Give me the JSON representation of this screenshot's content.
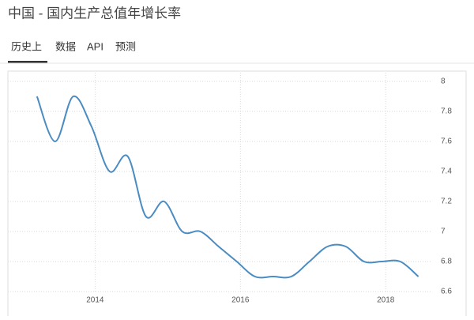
{
  "header": {
    "title": "中国 - 国内生产总值年增长率"
  },
  "tabs": [
    "历史上",
    "数据",
    "API",
    "预测"
  ],
  "chart_data": {
    "type": "line",
    "x": [
      2013.2,
      2013.45,
      2013.7,
      2013.95,
      2014.2,
      2014.45,
      2014.7,
      2014.95,
      2015.2,
      2015.45,
      2015.7,
      2015.95,
      2016.2,
      2016.45,
      2016.7,
      2016.95,
      2017.2,
      2017.45,
      2017.7,
      2017.95,
      2018.2,
      2018.45
    ],
    "values": [
      7.9,
      7.6,
      7.9,
      7.7,
      7.4,
      7.5,
      7.1,
      7.2,
      7.0,
      7.0,
      6.9,
      6.8,
      6.7,
      6.7,
      6.7,
      6.8,
      6.9,
      6.9,
      6.8,
      6.8,
      6.8,
      6.7
    ],
    "color": "#4a8cc2",
    "xlim": [
      2012.8,
      2018.9
    ],
    "xticks": [
      2014,
      2016,
      2018
    ],
    "ylim": [
      6.6,
      8
    ],
    "yticks": [
      6.6,
      6.8,
      7,
      7.2,
      7.4,
      7.6,
      7.8,
      8
    ],
    "grid": true
  }
}
